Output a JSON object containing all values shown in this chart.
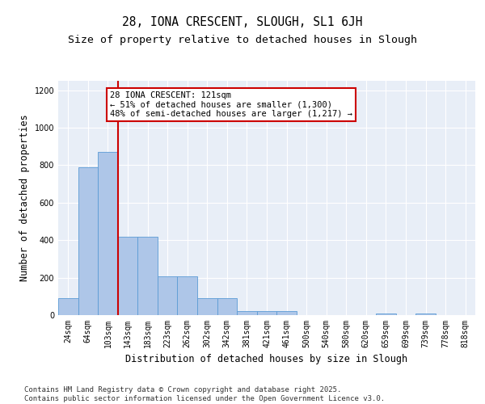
{
  "title": "28, IONA CRESCENT, SLOUGH, SL1 6JH",
  "subtitle": "Size of property relative to detached houses in Slough",
  "xlabel": "Distribution of detached houses by size in Slough",
  "ylabel": "Number of detached properties",
  "categories": [
    "24sqm",
    "64sqm",
    "103sqm",
    "143sqm",
    "183sqm",
    "223sqm",
    "262sqm",
    "302sqm",
    "342sqm",
    "381sqm",
    "421sqm",
    "461sqm",
    "500sqm",
    "540sqm",
    "580sqm",
    "620sqm",
    "659sqm",
    "699sqm",
    "739sqm",
    "778sqm",
    "818sqm"
  ],
  "values": [
    90,
    790,
    870,
    420,
    420,
    205,
    205,
    90,
    90,
    22,
    22,
    20,
    0,
    0,
    0,
    0,
    10,
    0,
    10,
    0,
    0
  ],
  "bar_color": "#aec6e8",
  "bar_edge_color": "#5b9bd5",
  "vline_x": 2.5,
  "vline_color": "#cc0000",
  "annotation_text": "28 IONA CRESCENT: 121sqm\n← 51% of detached houses are smaller (1,300)\n48% of semi-detached houses are larger (1,217) →",
  "annotation_box_color": "#cc0000",
  "ylim": [
    0,
    1250
  ],
  "yticks": [
    0,
    200,
    400,
    600,
    800,
    1000,
    1200
  ],
  "bg_color": "#e8eef7",
  "footer_line1": "Contains HM Land Registry data © Crown copyright and database right 2025.",
  "footer_line2": "Contains public sector information licensed under the Open Government Licence v3.0.",
  "title_fontsize": 10.5,
  "subtitle_fontsize": 9.5,
  "axis_label_fontsize": 8.5,
  "tick_fontsize": 7,
  "annotation_fontsize": 7.5,
  "footer_fontsize": 6.5
}
